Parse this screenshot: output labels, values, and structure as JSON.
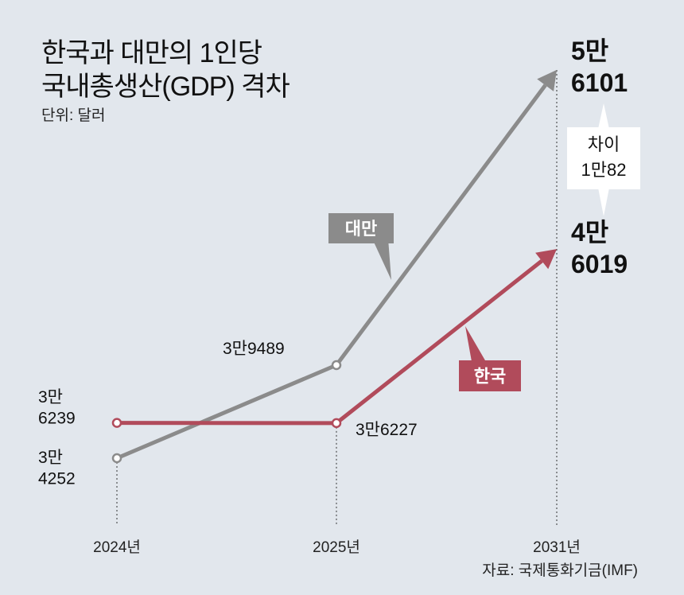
{
  "chart_data": {
    "type": "line",
    "title_line1": "한국과 대만의 1인당",
    "title_line2": "국내총생산(GDP) 격차",
    "unit": "단위: 달러",
    "source": "자료: 국제통화기금(IMF)",
    "categories": [
      "2024년",
      "2025년",
      "2031년"
    ],
    "series": [
      {
        "name": "대만",
        "color": "#8b8b8b",
        "values": [
          34252,
          39489,
          56101
        ],
        "labels": [
          [
            "3만",
            "4252"
          ],
          [
            "3만9489"
          ],
          [
            "5만",
            "6101"
          ]
        ]
      },
      {
        "name": "한국",
        "color": "#b14b5b",
        "values": [
          36239,
          36227,
          46019
        ],
        "labels": [
          [
            "3만",
            "6239"
          ],
          [
            "3만6227"
          ],
          [
            "4만",
            "6019"
          ]
        ]
      }
    ],
    "annotation": {
      "line1": "차이",
      "line2": "1만82"
    }
  }
}
